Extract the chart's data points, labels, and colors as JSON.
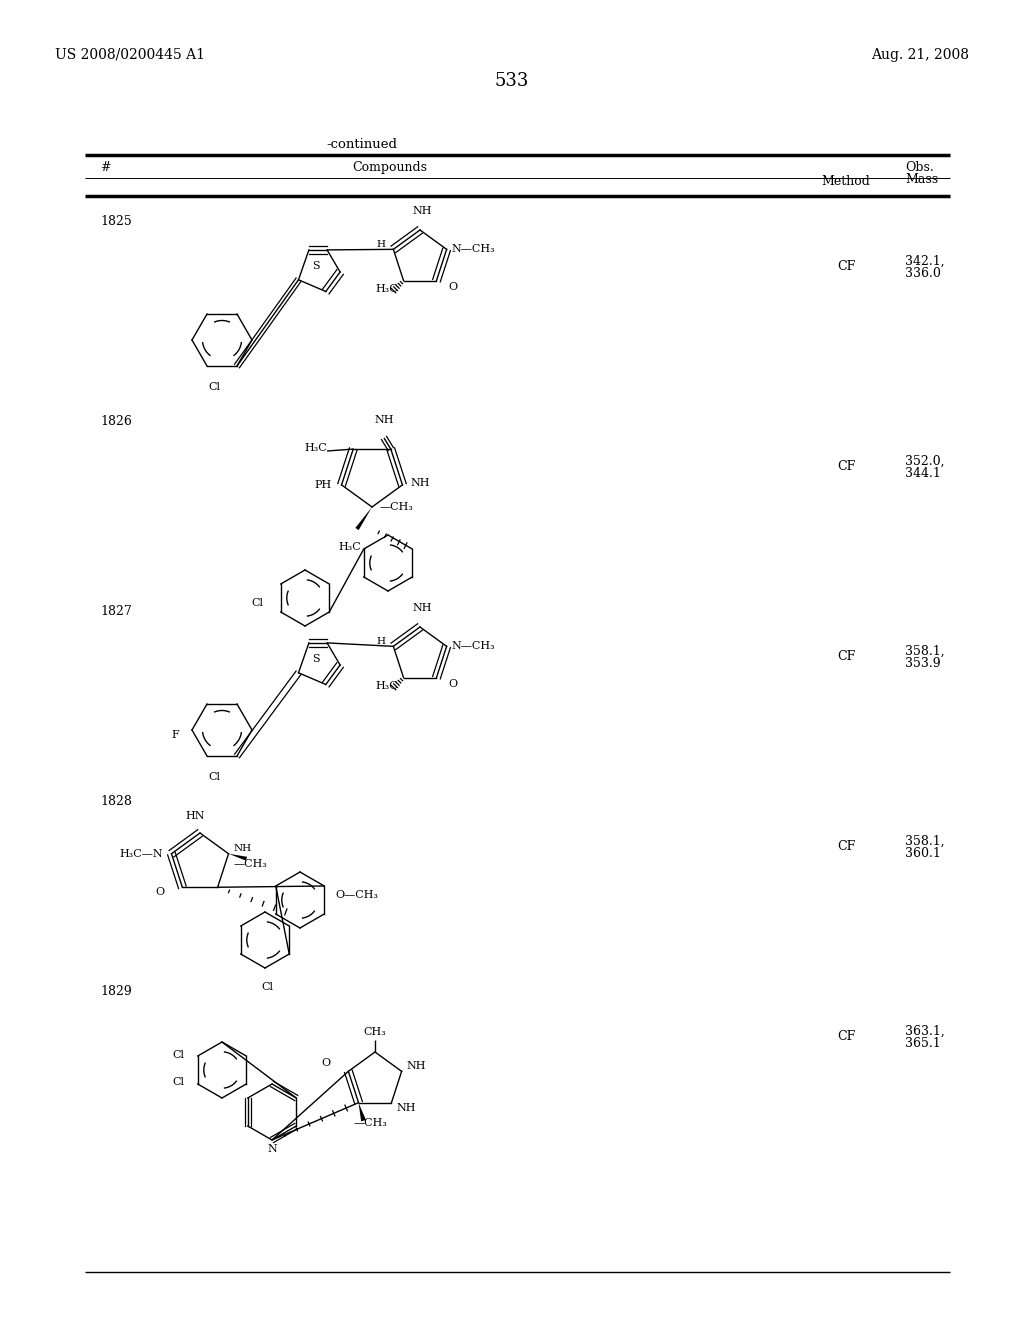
{
  "page_number": "533",
  "patent_number": "US 2008/0200445 A1",
  "patent_date": "Aug. 21, 2008",
  "continued_label": "-continued",
  "bg_color": "#ffffff",
  "text_color": "#000000",
  "rows": [
    {
      "id": "1825",
      "method": "CF",
      "mass1": "342.1,",
      "mass2": "336.0"
    },
    {
      "id": "1826",
      "method": "CF",
      "mass1": "352.0,",
      "mass2": "344.1"
    },
    {
      "id": "1827",
      "method": "CF",
      "mass1": "358.1,",
      "mass2": "353.9"
    },
    {
      "id": "1828",
      "method": "CF",
      "mass1": "358.1,",
      "mass2": "360.1"
    },
    {
      "id": "1829",
      "method": "CF",
      "mass1": "363.1,",
      "mass2": "365.1"
    }
  ]
}
